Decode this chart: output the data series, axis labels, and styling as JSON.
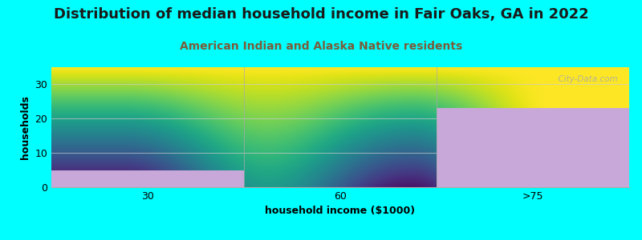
{
  "title": "Distribution of median household income in Fair Oaks, GA in 2022",
  "subtitle": "American Indian and Alaska Native residents",
  "xlabel": "household income ($1000)",
  "ylabel": "households",
  "categories": [
    "30",
    "60",
    ">75"
  ],
  "values": [
    5,
    0,
    23
  ],
  "bar_color": "#C8A8D8",
  "background_color": "#00FFFF",
  "plot_bg_top": "#FFFFFF",
  "plot_bg_bottom": "#D8EDDA",
  "ylim": [
    0,
    35
  ],
  "yticks": [
    0,
    10,
    20,
    30
  ],
  "title_fontsize": 13,
  "subtitle_fontsize": 10,
  "subtitle_color": "#7A5C3A",
  "axis_label_fontsize": 9,
  "tick_fontsize": 9,
  "watermark": "  City-Data.com"
}
